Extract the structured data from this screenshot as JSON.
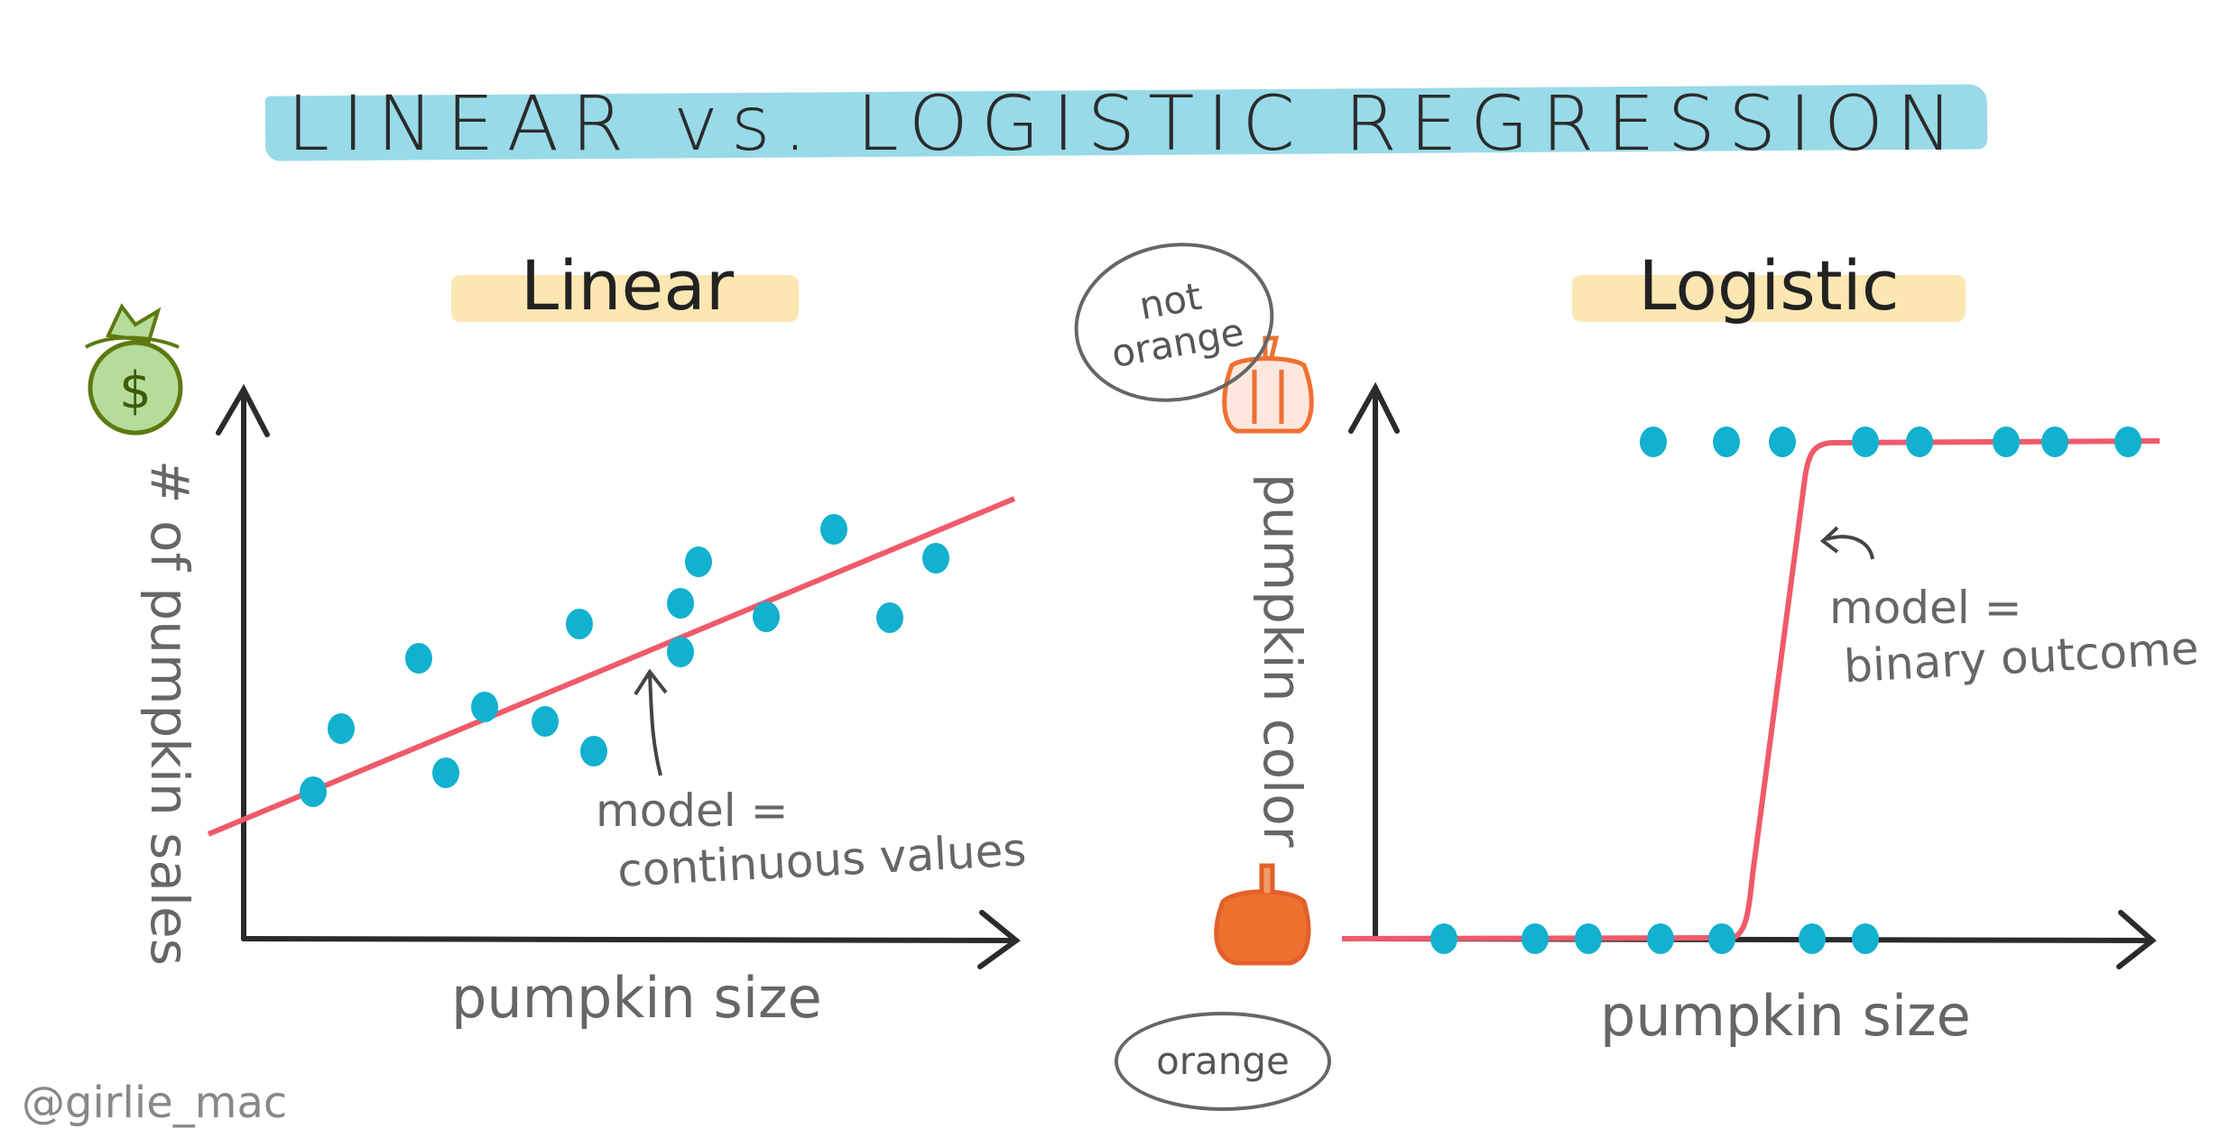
{
  "title": "LINEAR vs. LOGISTIC REGRESSION",
  "linear": {
    "heading": "Linear",
    "y_label": "# of pumpkin sales",
    "x_label": "pumpkin size",
    "note_line1": "model =",
    "note_line2": "continuous values",
    "icon": "money-bag-icon"
  },
  "logistic": {
    "heading": "Logistic",
    "y_label": "pumpkin color",
    "x_label": "pumpkin size",
    "note_line1": "model =",
    "note_line2": "binary outcome",
    "top_bubble": "not orange",
    "bottom_bubble": "orange",
    "icons": [
      "pumpkin-outline-icon",
      "pumpkin-orange-icon"
    ]
  },
  "signature": "@girlie_mac",
  "colors": {
    "points": "#12b1cf",
    "model_line": "#f05a6a",
    "banner": "#86d3e4",
    "heading_highlight": "#fbe3a6",
    "pumpkin": "#f07030",
    "axis": "#2b2b2b"
  }
}
